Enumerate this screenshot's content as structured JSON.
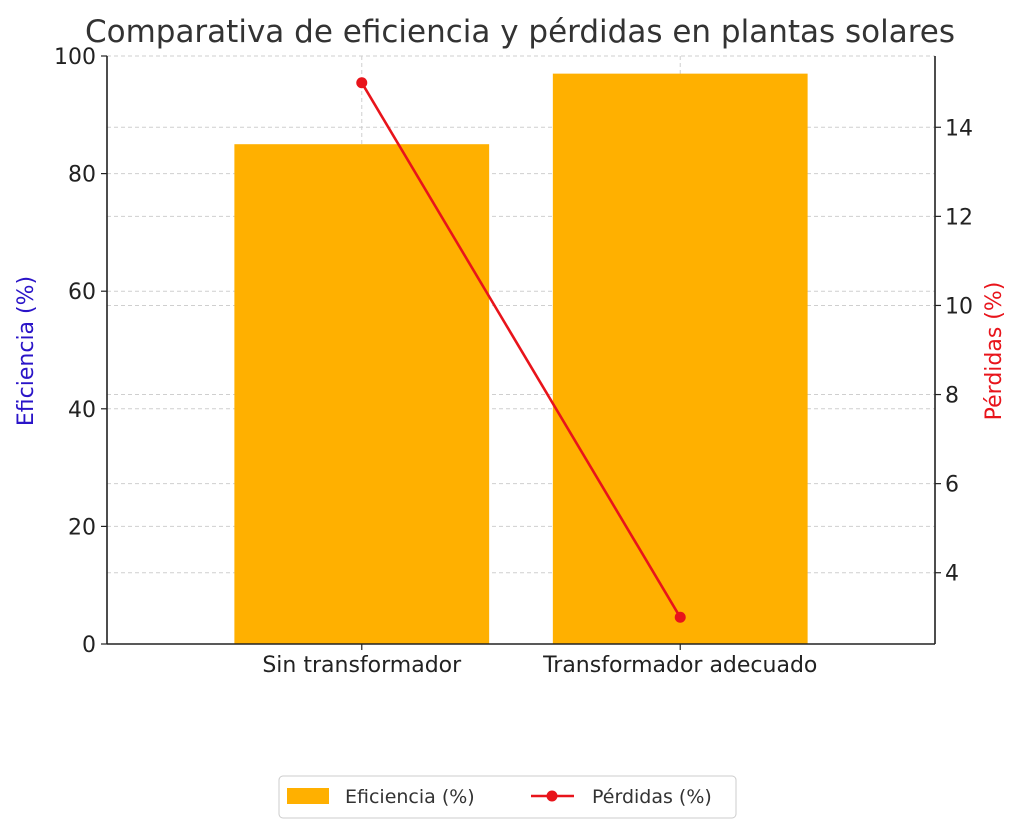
{
  "chart_data": {
    "type": "bar",
    "title": "Comparativa de eficiencia y pérdidas en plantas solares",
    "categories": [
      "Sin transformador",
      "Transformador adecuado"
    ],
    "series": [
      {
        "name": "Eficiencia (%)",
        "type": "bar",
        "axis": "left",
        "values": [
          85,
          97
        ],
        "color": "#FFB000"
      },
      {
        "name": "Pérdidas (%)",
        "type": "line",
        "axis": "right",
        "values": [
          15,
          3
        ],
        "color": "#E8141B"
      }
    ],
    "ylabel_left": "Eficiencia (%)",
    "ylabel_left_color": "#2A14C8",
    "ylabel_right": "Pérdidas (%)",
    "ylabel_right_color": "#E8141B",
    "ylim_left": [
      0,
      100
    ],
    "ylim_right": [
      2.4,
      15.6
    ],
    "yticks_left": [
      0,
      20,
      40,
      60,
      80,
      100
    ],
    "yticks_right": [
      4,
      6,
      8,
      10,
      12,
      14
    ],
    "grid": true,
    "legend_position": "bottom-center"
  }
}
